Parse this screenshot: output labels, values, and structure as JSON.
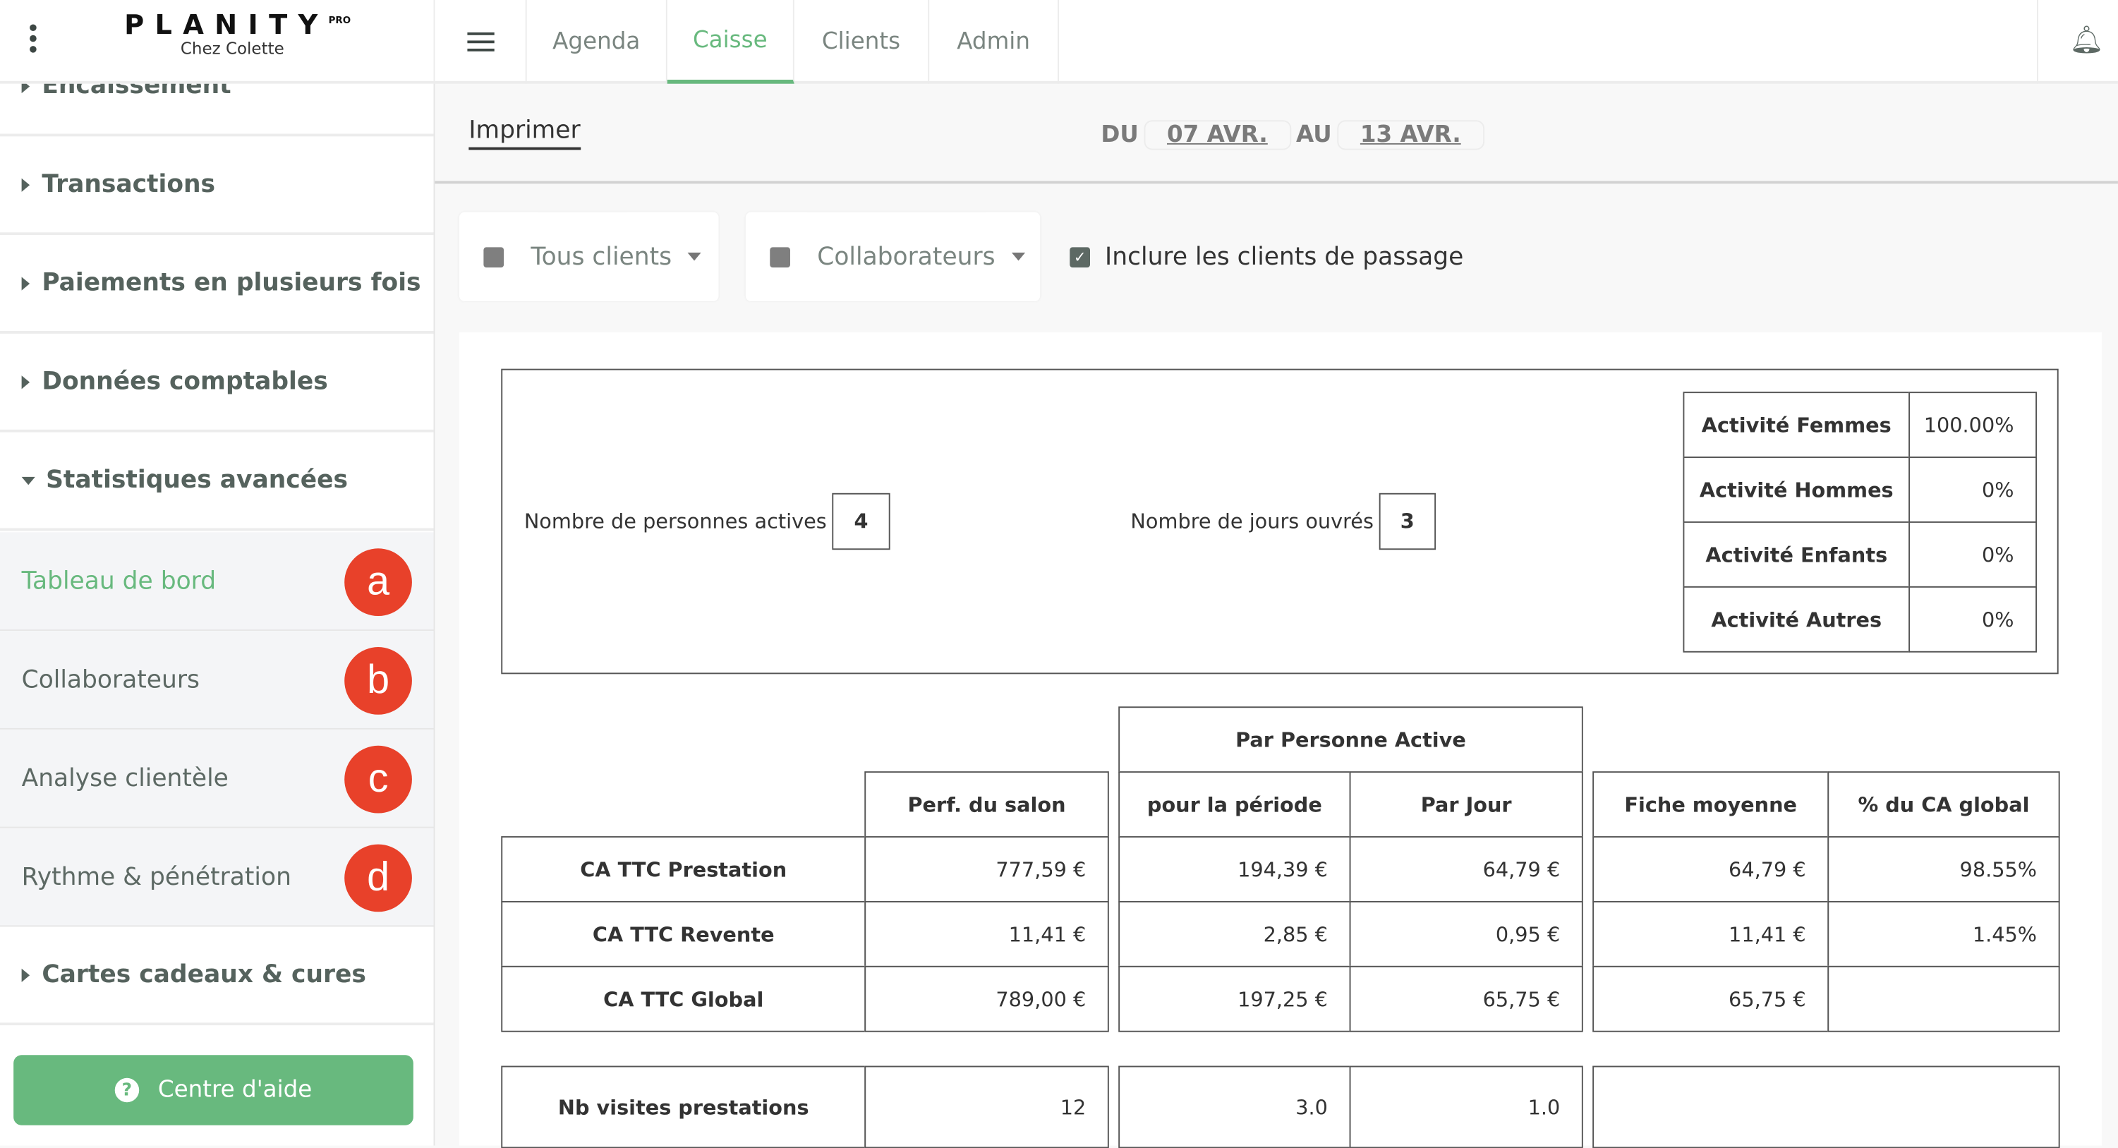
{
  "header": {
    "logo": "PLANITY",
    "logo_sup": "PRO",
    "salon": "Chez Colette",
    "tabs": [
      {
        "label": "Agenda"
      },
      {
        "label": "Caisse",
        "active": true
      },
      {
        "label": "Clients"
      },
      {
        "label": "Admin"
      }
    ]
  },
  "sidebar": {
    "items": [
      {
        "label": "Encaissement"
      },
      {
        "label": "Transactions"
      },
      {
        "label": "Paiements en plusieurs fois"
      },
      {
        "label": "Données comptables"
      },
      {
        "label": "Statistiques avancées",
        "expanded": true
      }
    ],
    "sub_items": [
      {
        "label": "Tableau de bord",
        "badge": "a",
        "active": true
      },
      {
        "label": "Collaborateurs",
        "badge": "b"
      },
      {
        "label": "Analyse clientèle",
        "badge": "c"
      },
      {
        "label": "Rythme & pénétration",
        "badge": "d"
      }
    ],
    "after": {
      "label": "Cartes cadeaux & cures"
    },
    "help_button": "Centre d'aide"
  },
  "toolbar": {
    "print": "Imprimer",
    "du": "DU",
    "from": "07 AVR.",
    "au": "AU",
    "to": "13 AVR."
  },
  "filters": {
    "clients": "Tous clients",
    "collaborateurs": "Collaborateurs",
    "include_label": "Inclure les clients de passage",
    "include_checked": true
  },
  "summary": {
    "active_label": "Nombre de personnes actives",
    "active_value": "4",
    "days_label": "Nombre de jours ouvrés",
    "days_value": "3",
    "activity": [
      {
        "label": "Activité Femmes",
        "value": "100.00%"
      },
      {
        "label": "Activité Hommes",
        "value": "0%"
      },
      {
        "label": "Activité Enfants",
        "value": "0%"
      },
      {
        "label": "Activité Autres",
        "value": "0%"
      }
    ]
  },
  "table": {
    "group_header": "Par Personne Active",
    "headers": [
      "Perf. du salon",
      "pour la période",
      "Par Jour",
      "Fiche moyenne",
      "% du CA global"
    ],
    "rows": [
      {
        "label": "CA TTC Prestation",
        "values": [
          "777,59 €",
          "194,39 €",
          "64,79 €",
          "64,79 €",
          "98.55%"
        ]
      },
      {
        "label": "CA TTC Revente",
        "values": [
          "11,41 €",
          "2,85 €",
          "0,95 €",
          "11,41 €",
          "1.45%"
        ]
      },
      {
        "label": "CA TTC Global",
        "values": [
          "789,00 €",
          "197,25 €",
          "65,75 €",
          "65,75 €",
          ""
        ]
      }
    ],
    "visits": {
      "label": "Nb visites prestations",
      "values": [
        "12",
        "3.0",
        "1.0",
        ""
      ]
    }
  },
  "colors": {
    "accent": "#68b97e",
    "badge": "#e8412a",
    "text": "#55625d"
  }
}
